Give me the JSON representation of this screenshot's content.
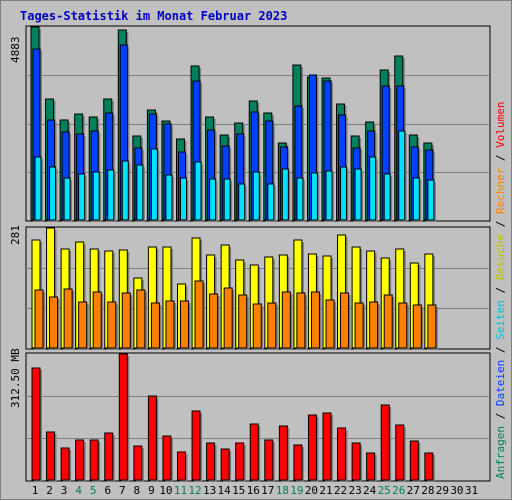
{
  "title": "Tages-Statistik im Monat Februar 2023",
  "colors": {
    "background": "#c0c0c0",
    "title": "#0000c0",
    "hits": "#00805c",
    "files": "#0040ff",
    "pages": "#00e0ff",
    "visits": "#ffff00",
    "sites": "#ff8000",
    "kbytes": "#ff0000",
    "weekend_day": "#00805c"
  },
  "y_axis_labels": {
    "top": "4883",
    "middle": "281",
    "bottom": "312.50 MB"
  },
  "legend": {
    "right_top": [
      {
        "text": "Anfragen",
        "color": "#00805c"
      },
      {
        "sep": " / "
      },
      {
        "text": "Dateien",
        "color": "#0040ff"
      },
      {
        "sep": " / "
      },
      {
        "text": "Seiten",
        "color": "#00c0e0"
      },
      {
        "sep": " / "
      },
      {
        "text": "Besuche",
        "color": "#c0c000"
      },
      {
        "sep": " / "
      },
      {
        "text": "Rechner",
        "color": "#ff8000"
      },
      {
        "sep": " / "
      },
      {
        "text": "Volumen",
        "color": "#ff0000"
      }
    ]
  },
  "chart_data": [
    {
      "type": "bar",
      "title": "Tages-Statistik im Monat Februar 2023",
      "categories": [
        "1",
        "2",
        "3",
        "4",
        "5",
        "6",
        "7",
        "8",
        "9",
        "10",
        "11",
        "12",
        "13",
        "14",
        "15",
        "16",
        "17",
        "18",
        "19",
        "20",
        "21",
        "22",
        "23",
        "24",
        "25",
        "26",
        "27",
        "28",
        "29",
        "30",
        "31"
      ],
      "weekend_days": [
        "4",
        "5",
        "11",
        "12",
        "18",
        "19",
        "25",
        "26"
      ],
      "ylim": [
        0,
        4883
      ],
      "ytick_label": "4883",
      "series": [
        {
          "name": "Anfragen",
          "values": [
            4883,
            3070,
            2520,
            2680,
            2610,
            3070,
            4810,
            2130,
            2780,
            2500,
            2050,
            3900,
            2600,
            2140,
            2460,
            3000,
            2700,
            1960,
            3920,
            3620,
            3600,
            2930,
            2120,
            2480,
            3790,
            4150,
            2160,
            1960,
            null,
            null,
            null
          ]
        },
        {
          "name": "Dateien",
          "values": [
            4320,
            2540,
            2230,
            2180,
            2260,
            2700,
            4440,
            1810,
            2690,
            2440,
            1730,
            3510,
            2270,
            1860,
            2180,
            2720,
            2510,
            1840,
            2880,
            3670,
            3520,
            2660,
            1820,
            2240,
            3400,
            3380,
            1850,
            1770,
            null,
            null,
            null
          ]
        },
        {
          "name": "Seiten",
          "values": [
            1590,
            1330,
            1050,
            1160,
            1210,
            1260,
            1500,
            1400,
            1790,
            1140,
            1050,
            1460,
            1040,
            1030,
            920,
            1220,
            920,
            1300,
            1060,
            1190,
            1230,
            1350,
            1300,
            1590,
            1160,
            2240,
            1060,
            1010,
            null,
            null,
            null
          ]
        }
      ]
    },
    {
      "type": "bar",
      "categories": [
        "1",
        "2",
        "3",
        "4",
        "5",
        "6",
        "7",
        "8",
        "9",
        "10",
        "11",
        "12",
        "13",
        "14",
        "15",
        "16",
        "17",
        "18",
        "19",
        "20",
        "21",
        "22",
        "23",
        "24",
        "25",
        "26",
        "27",
        "28",
        "29",
        "30",
        "31"
      ],
      "ylim": [
        0,
        281
      ],
      "ytick_label": "281",
      "series": [
        {
          "name": "Besuche",
          "values": [
            253,
            281,
            232,
            248,
            232,
            226,
            229,
            165,
            236,
            237,
            151,
            258,
            218,
            242,
            205,
            195,
            212,
            218,
            253,
            221,
            215,
            265,
            236,
            226,
            211,
            231,
            199,
            221,
            null,
            null,
            null
          ]
        },
        {
          "name": "Rechner",
          "values": [
            135,
            120,
            137,
            107,
            131,
            108,
            128,
            135,
            105,
            110,
            109,
            156,
            126,
            140,
            123,
            104,
            106,
            131,
            129,
            130,
            112,
            129,
            106,
            107,
            123,
            106,
            100,
            101,
            null,
            null,
            null
          ]
        }
      ]
    },
    {
      "type": "bar",
      "categories": [
        "1",
        "2",
        "3",
        "4",
        "5",
        "6",
        "7",
        "8",
        "9",
        "10",
        "11",
        "12",
        "13",
        "14",
        "15",
        "16",
        "17",
        "18",
        "19",
        "20",
        "21",
        "22",
        "23",
        "24",
        "25",
        "26",
        "27",
        "28",
        "29",
        "30",
        "31"
      ],
      "ylim": [
        0,
        312.5
      ],
      "ytick_label": "312.50 MB",
      "series": [
        {
          "name": "Volumen",
          "values": [
            278,
            120,
            80,
            98,
            98,
            116,
            312.5,
            85,
            208,
            108,
            70,
            172,
            91,
            78,
            93,
            139,
            98,
            134,
            88,
            162,
            167,
            130,
            91,
            66,
            187,
            137,
            97,
            66,
            null,
            null,
            null
          ]
        }
      ]
    }
  ]
}
